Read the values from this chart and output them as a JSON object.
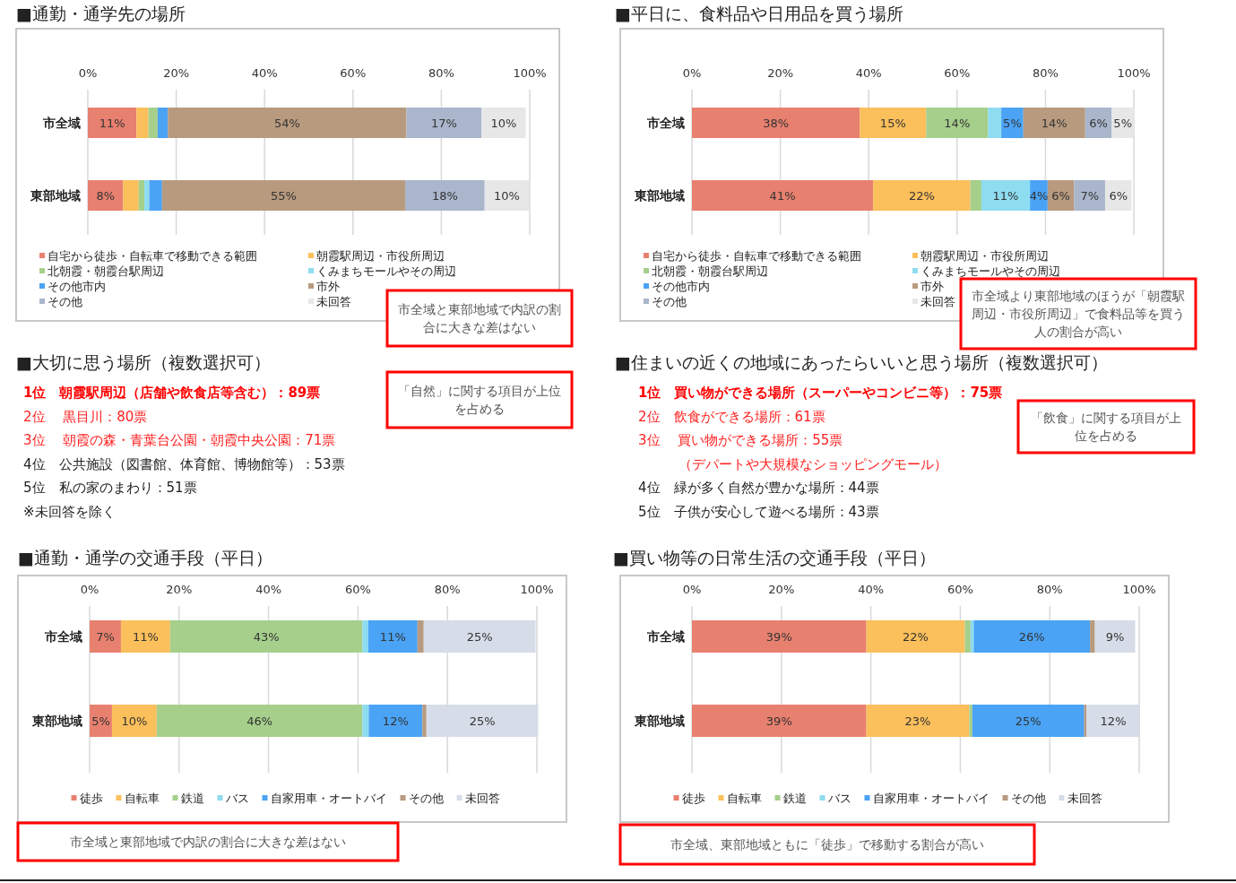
{
  "chart_data": [
    {
      "type": "bar",
      "orientation": "horizontal",
      "stacked": true,
      "title": "■通勤・通学先の場所",
      "categories": [
        "市全域",
        "東部地域"
      ],
      "xlim": [
        0,
        100
      ],
      "xticks": [
        {
          "value": 0,
          "label": "0%"
        },
        {
          "value": 20,
          "label": "20%"
        },
        {
          "value": 40,
          "label": "40%"
        },
        {
          "value": 60,
          "label": "60%"
        },
        {
          "value": 80,
          "label": "80%"
        },
        {
          "value": 100,
          "label": "100%"
        }
      ],
      "grid": "x",
      "legend": "bottom",
      "annotations": [
        "市全域と東部地域で内訳の割合に大きな差はない"
      ],
      "series": [
        {
          "name": "自宅から徒歩・自転車で移動できる範囲",
          "color": "#e8806f",
          "values": [
            11,
            8
          ],
          "value_labels": [
            "11%",
            "8%"
          ]
        },
        {
          "name": "朝霞駅周辺・市役所周辺",
          "color": "#fbbf5b",
          "values": [
            2.7,
            3.5
          ],
          "value_labels": [
            null,
            null
          ]
        },
        {
          "name": "北朝霞・朝霞台駅周辺",
          "color": "#a5cf8b",
          "values": [
            2.1,
            1.3
          ],
          "value_labels": [
            null,
            null
          ]
        },
        {
          "name": "くみまちモールやその周辺",
          "color": "#8edcf0",
          "values": [
            0,
            1.1
          ],
          "value_labels": [
            null,
            null
          ]
        },
        {
          "name": "その他市内",
          "color": "#4aa3f5",
          "values": [
            2.3,
            2.9
          ],
          "value_labels": [
            null,
            null
          ]
        },
        {
          "name": "市外",
          "color": "#b89a7e",
          "values": [
            54,
            55
          ],
          "value_labels": [
            "54%",
            "55%"
          ]
        },
        {
          "name": "その他",
          "color": "#a9b6cc",
          "values": [
            17,
            18
          ],
          "value_labels": [
            "17%",
            "18%"
          ]
        },
        {
          "name": "未回答",
          "color": "#e7e7e7",
          "values": [
            10,
            10
          ],
          "value_labels": [
            "10%",
            "10%"
          ]
        }
      ]
    },
    {
      "type": "bar",
      "orientation": "horizontal",
      "stacked": true,
      "title": "■平日に、食料品や日用品を買う場所",
      "categories": [
        "市全域",
        "東部地域"
      ],
      "xlim": [
        0,
        100
      ],
      "xticks": [
        {
          "value": 0,
          "label": "0%"
        },
        {
          "value": 20,
          "label": "20%"
        },
        {
          "value": 40,
          "label": "40%"
        },
        {
          "value": 60,
          "label": "60%"
        },
        {
          "value": 80,
          "label": "80%"
        },
        {
          "value": 100,
          "label": "100%"
        }
      ],
      "grid": "x",
      "legend": "bottom",
      "annotations": [
        "市全域より東部地域のほうが「朝霞駅周辺・市役所周辺」で食料品等を買う人の割合が高い"
      ],
      "series": [
        {
          "name": "自宅から徒歩・自転車で移動できる範囲",
          "color": "#e8806f",
          "values": [
            38,
            41
          ],
          "value_labels": [
            "38%",
            "41%"
          ]
        },
        {
          "name": "朝霞駅周辺・市役所周辺",
          "color": "#fbbf5b",
          "values": [
            15,
            22
          ],
          "value_labels": [
            "15%",
            "22%"
          ]
        },
        {
          "name": "北朝霞・朝霞台駅周辺",
          "color": "#a5cf8b",
          "values": [
            14,
            2.5
          ],
          "value_labels": [
            "14%",
            null
          ]
        },
        {
          "name": "くみまちモールやその周辺",
          "color": "#8edcf0",
          "values": [
            3,
            11
          ],
          "value_labels": [
            null,
            "11%"
          ]
        },
        {
          "name": "その他市内",
          "color": "#4aa3f5",
          "values": [
            5,
            4
          ],
          "value_labels": [
            "5%",
            "4%"
          ]
        },
        {
          "name": "市外",
          "color": "#b89a7e",
          "values": [
            14,
            6
          ],
          "value_labels": [
            "14%",
            "6%"
          ]
        },
        {
          "name": "その他",
          "color": "#a9b6cc",
          "values": [
            6,
            7
          ],
          "value_labels": [
            "6%",
            "7%"
          ]
        },
        {
          "name": "未回答",
          "color": "#e7e7e7",
          "values": [
            5,
            6
          ],
          "value_labels": [
            "5%",
            "6%"
          ]
        }
      ]
    },
    {
      "type": "other",
      "title": "■大切に思う場所（複数選択可）",
      "annotations": [
        "1位　朝霞駅周辺（店舗や飲食店等含む）：89票",
        "2位　 黒目川：80票",
        "3位　 朝霞の森・青葉台公園・朝霞中央公園：71票",
        "4位　公共施設（図書館、体育館、博物館等）：53票",
        "5位　私の家のまわり：51票",
        "※未回答を除く",
        "「自然」に関する項目が上位を占める"
      ],
      "colors": [
        "#ff0000",
        "#ff2020",
        "#ff2020",
        "#222222",
        "#222222",
        "#222222",
        "#555555"
      ]
    },
    {
      "type": "other",
      "title": "■住まいの近くの地域にあったらいいと思う場所（複数選択可）",
      "annotations": [
        "1位　買い物ができる場所（スーパーやコンビニ等）：75票",
        "2位　飲食ができる場所：61票",
        "3位　 買い物ができる場所：55票",
        "　　　（デパートや大規模なショッピングモール）",
        "4位　緑が多く自然が豊かな場所：44票",
        "5位　子供が安心して遊べる場所：43票",
        "「飲食」に関する項目が上位を占める"
      ],
      "colors": [
        "#ff0000",
        "#ff2020",
        "#ff2020",
        "#ff2020",
        "#222222",
        "#222222",
        "#555555"
      ]
    },
    {
      "type": "bar",
      "orientation": "horizontal",
      "stacked": true,
      "title": "■通勤・通学の交通手段（平日）",
      "categories": [
        "市全域",
        "東部地域"
      ],
      "xlim": [
        0,
        100
      ],
      "xticks": [
        {
          "value": 0,
          "label": "0%"
        },
        {
          "value": 20,
          "label": "20%"
        },
        {
          "value": 40,
          "label": "40%"
        },
        {
          "value": 60,
          "label": "60%"
        },
        {
          "value": 80,
          "label": "80%"
        },
        {
          "value": 100,
          "label": "100%"
        }
      ],
      "grid": "x",
      "legend": "bottom",
      "annotations": [
        "市全域と東部地域で内訳の割合に大きな差はない"
      ],
      "series": [
        {
          "name": "徒歩",
          "color": "#e8806f",
          "values": [
            7,
            5
          ],
          "value_labels": [
            "7%",
            "5%"
          ]
        },
        {
          "name": "自転車",
          "color": "#fbbf5b",
          "values": [
            11,
            10
          ],
          "value_labels": [
            "11%",
            "10%"
          ]
        },
        {
          "name": "鉄道",
          "color": "#a5cf8b",
          "values": [
            43,
            46
          ],
          "value_labels": [
            "43%",
            "46%"
          ]
        },
        {
          "name": "バス",
          "color": "#8edcf0",
          "values": [
            1.3,
            1.4
          ],
          "value_labels": [
            null,
            null
          ]
        },
        {
          "name": "自家用車・オートバイ",
          "color": "#4aa3f5",
          "values": [
            11,
            12
          ],
          "value_labels": [
            "11%",
            "12%"
          ]
        },
        {
          "name": "その他",
          "color": "#b89a7e",
          "values": [
            1.4,
            0.9
          ],
          "value_labels": [
            null,
            null
          ]
        },
        {
          "name": "未回答",
          "color": "#d6dde8",
          "values": [
            25,
            25
          ],
          "value_labels": [
            "25%",
            "25%"
          ]
        }
      ]
    },
    {
      "type": "bar",
      "orientation": "horizontal",
      "stacked": true,
      "title": "■買い物等の日常生活の交通手段（平日）",
      "categories": [
        "市全域",
        "東部地域"
      ],
      "xlim": [
        0,
        100
      ],
      "xticks": [
        {
          "value": 0,
          "label": "0%"
        },
        {
          "value": 20,
          "label": "20%"
        },
        {
          "value": 40,
          "label": "40%"
        },
        {
          "value": 60,
          "label": "60%"
        },
        {
          "value": 80,
          "label": "80%"
        },
        {
          "value": 100,
          "label": "100%"
        }
      ],
      "grid": "x",
      "legend": "bottom",
      "annotations": [
        "市全域、東部地域ともに「徒歩」で移動する割合が高い"
      ],
      "series": [
        {
          "name": "徒歩",
          "color": "#e8806f",
          "values": [
            39,
            39
          ],
          "value_labels": [
            "39%",
            "39%"
          ]
        },
        {
          "name": "自転車",
          "color": "#fbbf5b",
          "values": [
            22,
            23
          ],
          "value_labels": [
            "22%",
            "23%"
          ]
        },
        {
          "name": "鉄道",
          "color": "#a5cf8b",
          "values": [
            1.3,
            0.7
          ],
          "value_labels": [
            null,
            null
          ]
        },
        {
          "name": "バス",
          "color": "#8edcf0",
          "values": [
            0.7,
            0
          ],
          "value_labels": [
            null,
            null
          ]
        },
        {
          "name": "自家用車・オートバイ",
          "color": "#4aa3f5",
          "values": [
            26,
            25
          ],
          "value_labels": [
            "26%",
            "25%"
          ]
        },
        {
          "name": "その他",
          "color": "#b89a7e",
          "values": [
            1.1,
            0.5
          ],
          "value_labels": [
            null,
            null
          ]
        },
        {
          "name": "未回答",
          "color": "#d6dde8",
          "values": [
            9,
            12
          ],
          "value_labels": [
            "9%",
            "12%"
          ]
        }
      ]
    }
  ]
}
